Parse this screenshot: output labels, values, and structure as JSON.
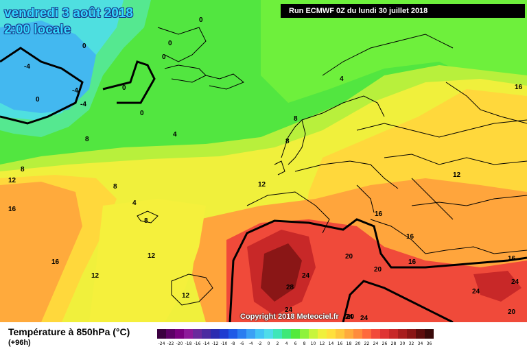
{
  "header": {
    "date": "vendredi 3 août 2018",
    "time": "2:00 locale",
    "run": "Run ECMWF 0Z du lundi 30 juillet 2018"
  },
  "copyright": "Copyright 2018 Meteociel.fr",
  "footer": {
    "title": "Température à 850hPa (°C)",
    "subtitle": "(+96h)"
  },
  "scale": {
    "labels": [
      "-24",
      "-22",
      "-20",
      "-18",
      "-16",
      "-14",
      "-12",
      "-10",
      "-8",
      "-6",
      "-4",
      "-2",
      "0",
      "2",
      "4",
      "6",
      "8",
      "10",
      "12",
      "14",
      "16",
      "18",
      "20",
      "22",
      "24",
      "26",
      "28",
      "30",
      "32",
      "34",
      "36"
    ],
    "colors": [
      "#3b0040",
      "#5c0066",
      "#7a0080",
      "#8e1a9a",
      "#6a2a9c",
      "#4b2ba0",
      "#2b2bb0",
      "#1e3cd0",
      "#1e5ae6",
      "#2a7df0",
      "#3aa0f5",
      "#43c4f5",
      "#4fdcea",
      "#3fe6b8",
      "#3ee878",
      "#52ea3c",
      "#8ef23c",
      "#c8f53c",
      "#f0f03c",
      "#ffe03c",
      "#ffc83c",
      "#ffaa3c",
      "#ff8c3c",
      "#ff6a3c",
      "#f24a3a",
      "#e03434",
      "#c82828",
      "#a81e1e",
      "#8a1616",
      "#5e0e0e",
      "#3a0a0a"
    ]
  },
  "isotherm_labels": [
    {
      "text": "0"
    },
    {
      "text": "0"
    },
    {
      "text": "0"
    },
    {
      "text": "0"
    },
    {
      "text": "0"
    },
    {
      "text": "0"
    },
    {
      "text": "0"
    },
    {
      "text": "-4"
    },
    {
      "text": "-4"
    },
    {
      "text": "-4"
    },
    {
      "text": "4"
    },
    {
      "text": "4"
    },
    {
      "text": "4"
    },
    {
      "text": "8"
    },
    {
      "text": "8"
    },
    {
      "text": "8"
    },
    {
      "text": "8"
    },
    {
      "text": "8"
    },
    {
      "text": "8"
    },
    {
      "text": "12"
    },
    {
      "text": "12"
    },
    {
      "text": "12"
    },
    {
      "text": "12"
    },
    {
      "text": "12"
    },
    {
      "text": "12"
    },
    {
      "text": "16"
    },
    {
      "text": "16"
    },
    {
      "text": "16"
    },
    {
      "text": "16"
    },
    {
      "text": "16"
    },
    {
      "text": "16"
    },
    {
      "text": "16"
    },
    {
      "text": "20"
    },
    {
      "text": "20"
    },
    {
      "text": "20"
    },
    {
      "text": "20"
    },
    {
      "text": "24"
    },
    {
      "text": "24"
    },
    {
      "text": "24"
    },
    {
      "text": "24"
    },
    {
      "text": "24"
    },
    {
      "text": "24"
    },
    {
      "text": "28"
    }
  ]
}
